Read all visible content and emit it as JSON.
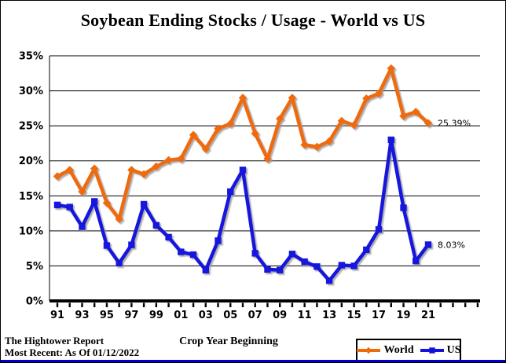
{
  "title": "Soybean Ending Stocks / Usage - World vs US",
  "footer": {
    "source_line1": "The Hightower Report",
    "source_line2": "Most Recent: As Of 01/12/2022"
  },
  "colors": {
    "world": "#EE6B0B",
    "us": "#1212DD",
    "grid": "#000000",
    "axis": "#000000",
    "bottom_rule": "#0000CC",
    "shadow": "#999999"
  },
  "chart_data": {
    "type": "line",
    "title": "Soybean Ending Stocks / Usage - World vs US",
    "xlabel": "Crop Year Beginning",
    "ylabel": "",
    "grid": true,
    "legend_position": "bottom-right",
    "ylim": [
      0,
      35
    ],
    "y_tick_labels": [
      "0%",
      "5%",
      "10%",
      "15%",
      "20%",
      "25%",
      "30%",
      "35%"
    ],
    "x_years": [
      1991,
      1992,
      1993,
      1994,
      1995,
      1996,
      1997,
      1998,
      1999,
      2000,
      2001,
      2002,
      2003,
      2004,
      2005,
      2006,
      2007,
      2008,
      2009,
      2010,
      2011,
      2012,
      2013,
      2014,
      2015,
      2016,
      2017,
      2018,
      2019,
      2020,
      2021
    ],
    "x_tick_labels": [
      "91",
      "93",
      "95",
      "97",
      "99",
      "01",
      "03",
      "05",
      "07",
      "09",
      "11",
      "13",
      "15",
      "17",
      "19",
      "21"
    ],
    "series": [
      {
        "name": "World",
        "marker": "diamond",
        "color": "#EE6B0B",
        "end_label": "25.39%",
        "values": [
          17.8,
          18.7,
          15.6,
          18.9,
          14.0,
          11.7,
          18.7,
          18.1,
          19.2,
          20.1,
          20.3,
          23.7,
          21.7,
          24.6,
          25.3,
          29.0,
          23.9,
          20.3,
          26.0,
          29.0,
          22.3,
          22.0,
          22.8,
          25.7,
          25.1,
          28.9,
          29.6,
          33.2,
          26.4,
          27.0,
          25.39
        ]
      },
      {
        "name": "US",
        "marker": "square",
        "color": "#1212DD",
        "end_label": "8.03%",
        "values": [
          13.7,
          13.4,
          10.6,
          14.2,
          7.9,
          5.4,
          8.0,
          13.8,
          10.8,
          9.1,
          7.0,
          6.6,
          4.4,
          8.6,
          15.6,
          18.7,
          6.8,
          4.5,
          4.4,
          6.7,
          5.6,
          4.9,
          2.9,
          5.1,
          5.0,
          7.3,
          10.2,
          23.0,
          13.3,
          5.7,
          8.03
        ]
      }
    ]
  }
}
